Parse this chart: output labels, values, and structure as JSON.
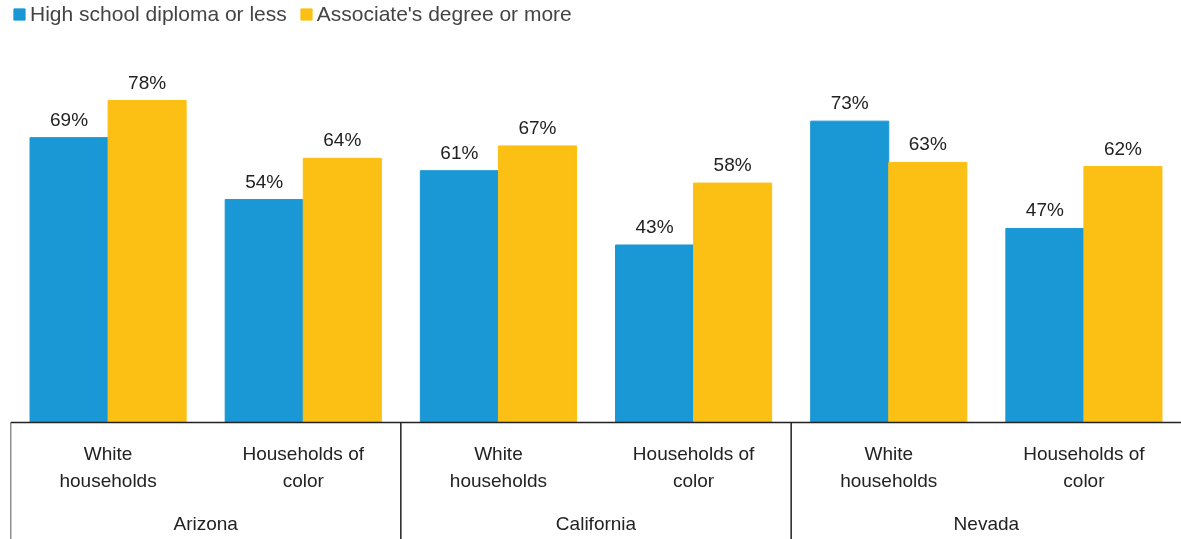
{
  "chart_data": {
    "type": "bar",
    "categories": [
      "White households",
      "Households of color",
      "White households",
      "Households of color",
      "White households",
      "Households of color"
    ],
    "series": [
      {
        "name": "High school diploma or less",
        "color": "#1a98d5",
        "values": [
          69,
          54,
          61,
          43,
          73,
          47
        ],
        "value_labels": [
          "69%",
          "54%",
          "61%",
          "43%",
          "73%",
          "47%"
        ]
      },
      {
        "name": "Associate's degree or more",
        "color": "#fcbf13",
        "values": [
          78,
          64,
          67,
          58,
          63,
          62
        ],
        "value_labels": [
          "78%",
          "64%",
          "67%",
          "58%",
          "63%",
          "62%"
        ]
      }
    ],
    "annotations": [
      "Arizona",
      "California",
      "Nevada"
    ],
    "tick_labels": false,
    "grid": false,
    "legend": "top left"
  }
}
